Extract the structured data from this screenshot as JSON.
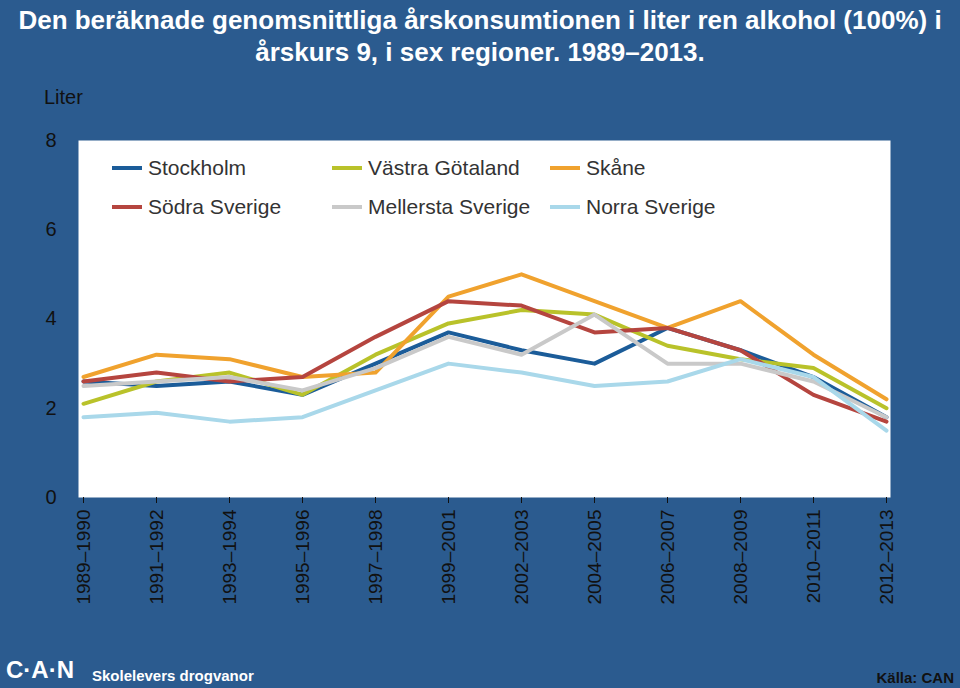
{
  "chart_data": {
    "type": "line",
    "title": "Den beräknade genomsnittliga årskonsumtionen i liter ren alkohol (100%) i årskurs 9, i sex regioner. 1989–2013.",
    "y_label": "Liter",
    "categories": [
      "1989–1990",
      "1991–1992",
      "1993–1994",
      "1995–1996",
      "1997–1998",
      "1999–2001",
      "2002–2003",
      "2004–2005",
      "2006–2007",
      "2008–2009",
      "2010–2011",
      "2012–2013"
    ],
    "series": [
      {
        "name": "Stockholm",
        "color": "#1b5c99",
        "values": [
          2.6,
          2.5,
          2.6,
          2.3,
          3.0,
          3.7,
          3.3,
          3.0,
          3.8,
          3.3,
          2.7,
          1.8
        ]
      },
      {
        "name": "Västra Götaland",
        "color": "#b9c22a",
        "values": [
          2.1,
          2.6,
          2.8,
          2.3,
          3.2,
          3.9,
          4.2,
          4.1,
          3.4,
          3.1,
          2.9,
          2.0
        ]
      },
      {
        "name": "Skåne",
        "color": "#f0a22e",
        "values": [
          2.7,
          3.2,
          3.1,
          2.7,
          2.8,
          4.5,
          5.0,
          4.4,
          3.8,
          4.4,
          3.2,
          2.2
        ]
      },
      {
        "name": "Södra Sverige",
        "color": "#b5453f",
        "values": [
          2.6,
          2.8,
          2.6,
          2.7,
          3.6,
          4.4,
          4.3,
          3.7,
          3.8,
          3.3,
          2.3,
          1.7
        ]
      },
      {
        "name": "Mellersta Sverige",
        "color": "#c9c9c9",
        "values": [
          2.5,
          2.6,
          2.7,
          2.4,
          2.9,
          3.6,
          3.2,
          4.1,
          3.0,
          3.0,
          2.6,
          1.8
        ]
      },
      {
        "name": "Norra Sverige",
        "color": "#a9d8ea",
        "values": [
          1.8,
          1.9,
          1.7,
          1.8,
          2.4,
          3.0,
          2.8,
          2.5,
          2.6,
          3.1,
          2.7,
          1.5
        ]
      }
    ],
    "ylim": [
      0,
      8
    ],
    "yticks": [
      0,
      2,
      4,
      6,
      8
    ],
    "grid": false,
    "legend": "top",
    "footer_logo": "C·A·N",
    "footer_text": "Skolelevers drogvanor",
    "source": "Källa: CAN"
  }
}
